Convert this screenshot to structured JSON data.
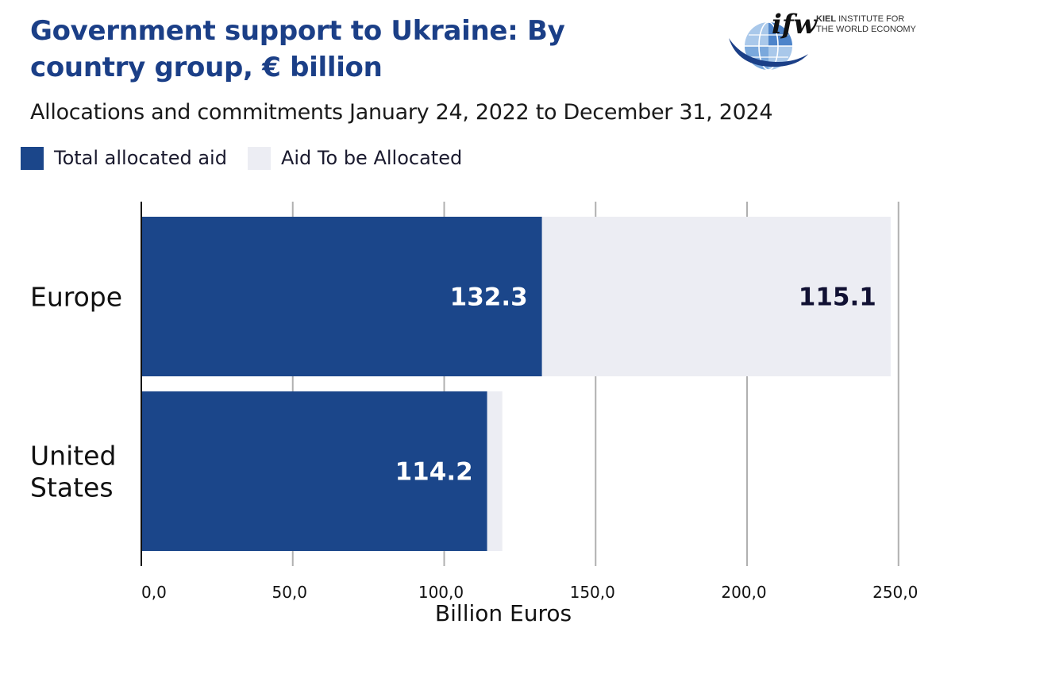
{
  "header": {
    "title": "Government support to Ukraine: By country group, € billion",
    "subtitle": "Allocations and commitments January 24, 2022 to December 31, 2024"
  },
  "logo": {
    "mark": "ifw",
    "line1_bold": "KIEL",
    "line1_rest": " INSTITUTE FOR",
    "line2": "THE WORLD ECONOMY",
    "icon": "globe-icon"
  },
  "colors": {
    "allocated": "#1b468a",
    "to_be_allocated": "#ecedf3",
    "title": "#1b3f87",
    "gridline": "#b0b0b0"
  },
  "chart_data": {
    "type": "bar",
    "orientation": "horizontal",
    "stacked": true,
    "categories": [
      "Europe",
      "United States"
    ],
    "category_labels": [
      [
        "Europe"
      ],
      [
        "United",
        "States"
      ]
    ],
    "series": [
      {
        "name": "Total allocated aid",
        "values": [
          132.3,
          114.2
        ],
        "labels": [
          "132.3",
          "114.2"
        ]
      },
      {
        "name": "Aid To be Allocated",
        "values": [
          115.1,
          5.0
        ],
        "labels": [
          "115.1",
          ""
        ]
      }
    ],
    "xlabel": "Billion Euros",
    "xlim": [
      0,
      250
    ],
    "x_ticks": [
      0,
      50,
      100,
      150,
      200,
      250
    ],
    "x_tick_labels": [
      "0,0",
      "50,0",
      "100,0",
      "150,0",
      "200,0",
      "250,0"
    ],
    "grid": true,
    "legend": "top-left"
  }
}
